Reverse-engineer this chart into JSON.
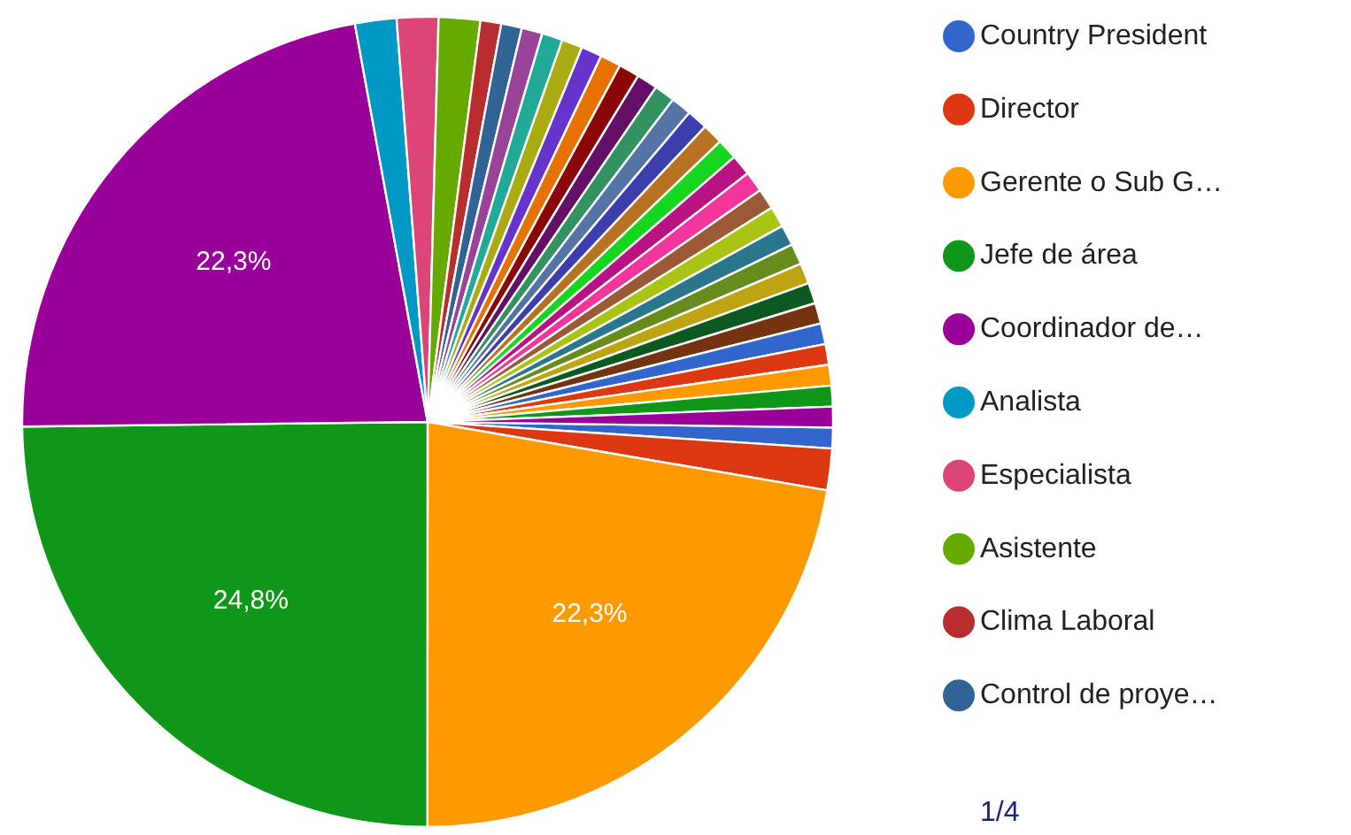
{
  "chart_data": {
    "type": "pie",
    "categories": [
      "Country President",
      "Director",
      "Gerente o Sub G…",
      "Jefe de área",
      "Coordinador de…",
      "Analista",
      "Especialista",
      "Asistente",
      "Clima Laboral",
      "Control de proye…",
      null,
      null,
      null,
      null,
      null,
      null,
      null,
      null,
      null,
      null,
      null,
      null,
      null,
      null,
      null,
      null,
      null,
      null,
      null,
      null,
      null,
      null,
      null,
      null,
      null,
      null
    ],
    "values": [
      0.826,
      1.653,
      22.3,
      24.8,
      22.3,
      1.653,
      1.653,
      1.653,
      0.826,
      0.826,
      0.826,
      0.826,
      0.826,
      0.826,
      0.826,
      0.826,
      0.826,
      0.826,
      0.826,
      0.826,
      0.826,
      0.826,
      0.826,
      0.826,
      0.826,
      0.826,
      0.826,
      0.826,
      0.826,
      0.826,
      0.826,
      0.826,
      0.826,
      0.826,
      0.826,
      0.826
    ],
    "colors": [
      "#3366cc",
      "#dc3912",
      "#ff9900",
      "#109618",
      "#990099",
      "#0099c6",
      "#dd4477",
      "#66aa00",
      "#b82e2e",
      "#316395",
      "#994499",
      "#22aa99",
      "#aaaa11",
      "#6633cc",
      "#e67300",
      "#8b0707",
      "#651067",
      "#329262",
      "#5574a6",
      "#3b3eac",
      "#b77322",
      "#16d620",
      "#b91383",
      "#f4359e",
      "#9c5935",
      "#a9c413",
      "#2a778d",
      "#668d1c",
      "#bea413",
      "#0c5922",
      "#743411",
      "#3366cc",
      "#dc3912",
      "#ff9900",
      "#109618",
      "#990099"
    ],
    "value_labels": [
      null,
      null,
      "22,3%",
      "24,8%",
      "22,3%",
      null,
      null,
      null,
      null,
      null,
      null,
      null,
      null,
      null,
      null,
      null,
      null,
      null,
      null,
      null,
      null,
      null,
      null,
      null,
      null,
      null,
      null,
      null,
      null,
      null,
      null,
      null,
      null,
      null,
      null,
      null
    ],
    "legend": "right",
    "annotations": [
      "1/4"
    ]
  }
}
